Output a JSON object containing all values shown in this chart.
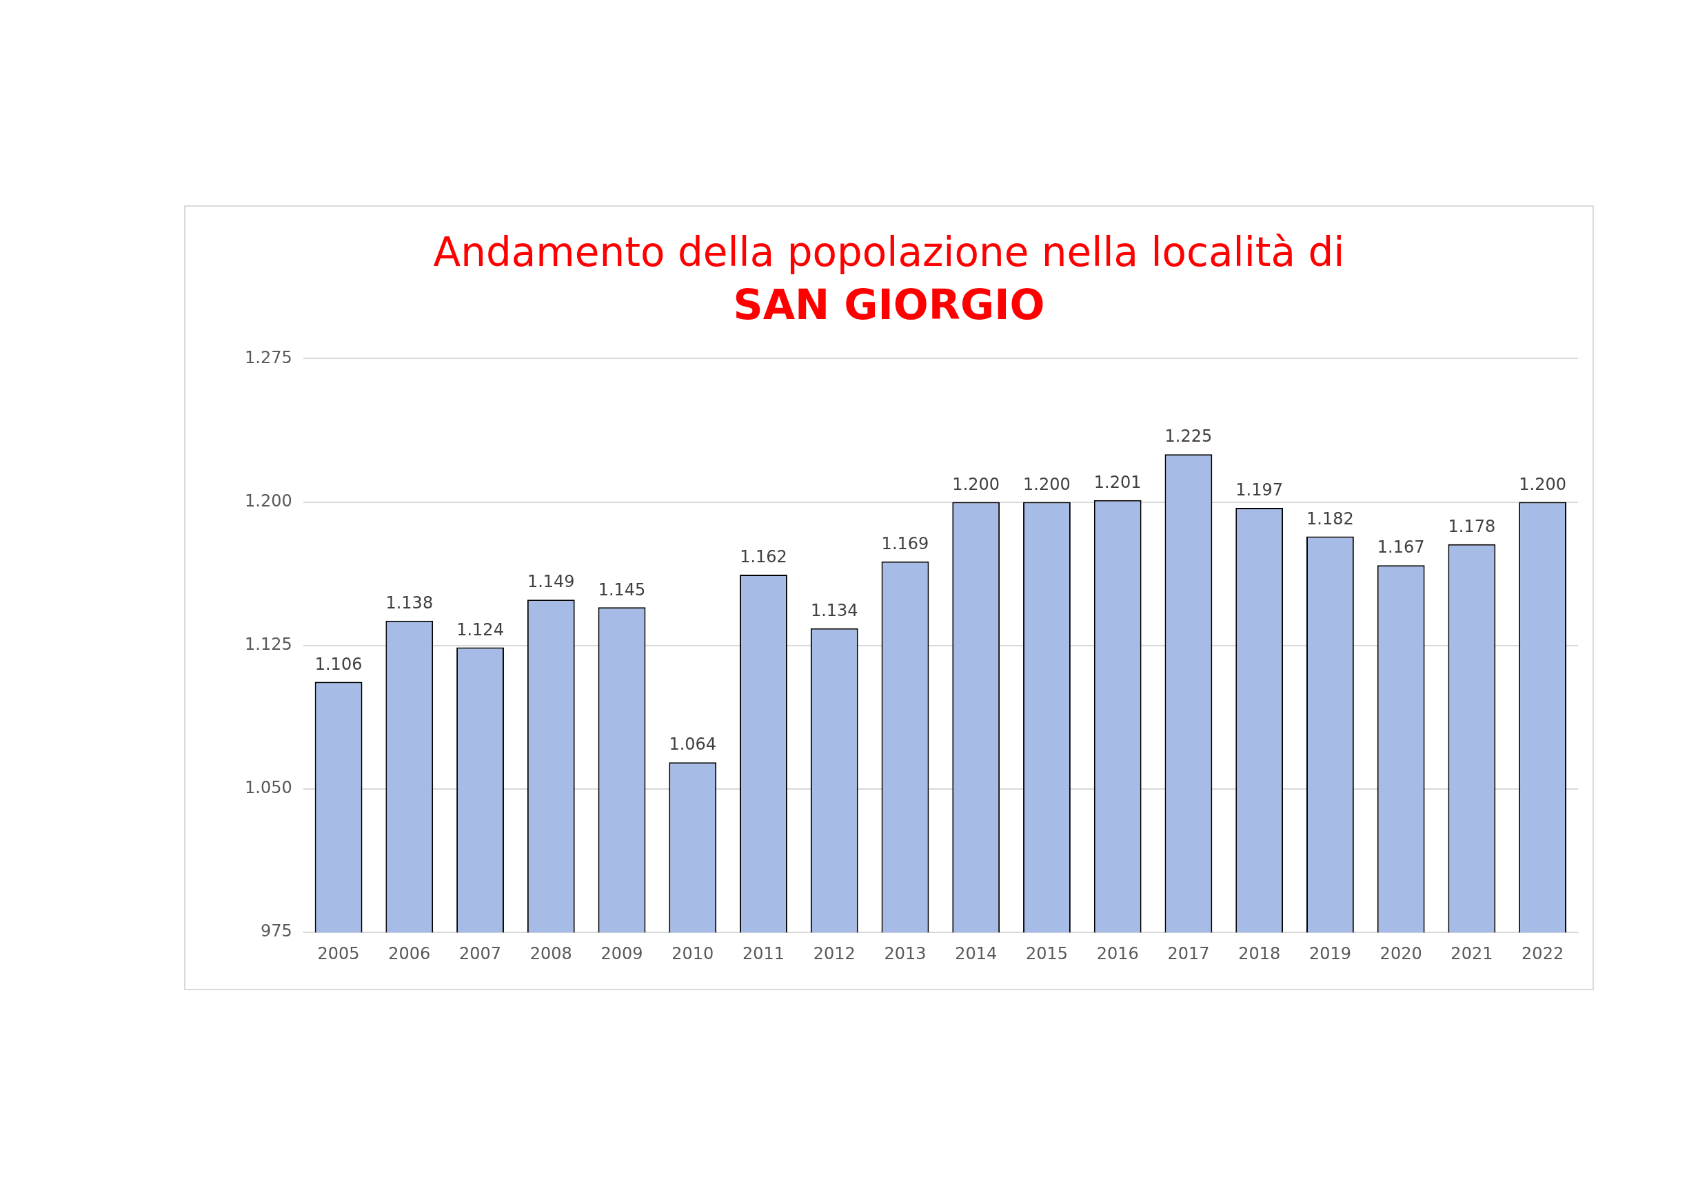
{
  "chart_data": {
    "type": "bar",
    "title": "Andamento della popolazione nella località di",
    "subtitle": "SAN GIORGIO",
    "categories": [
      "2005",
      "2006",
      "2007",
      "2008",
      "2009",
      "2010",
      "2011",
      "2012",
      "2013",
      "2014",
      "2015",
      "2016",
      "2017",
      "2018",
      "2019",
      "2020",
      "2021",
      "2022"
    ],
    "values": [
      1106,
      1138,
      1124,
      1149,
      1145,
      1064,
      1162,
      1134,
      1169,
      1200,
      1200,
      1201,
      1225,
      1197,
      1182,
      1167,
      1178,
      1200
    ],
    "value_labels": [
      "1.106",
      "1.138",
      "1.124",
      "1.149",
      "1.145",
      "1.064",
      "1.162",
      "1.134",
      "1.169",
      "1.200",
      "1.200",
      "1.201",
      "1.225",
      "1.197",
      "1.182",
      "1.167",
      "1.178",
      "1.200"
    ],
    "color": "#a6bce6",
    "ylim": [
      975,
      1275
    ],
    "yticks": [
      {
        "value": 975,
        "label": "975"
      },
      {
        "value": 1050,
        "label": "1.050"
      },
      {
        "value": 1125,
        "label": "1.125"
      },
      {
        "value": 1200,
        "label": "1.200"
      },
      {
        "value": 1275,
        "label": "1.275"
      }
    ],
    "grid": "y",
    "legend": false
  }
}
